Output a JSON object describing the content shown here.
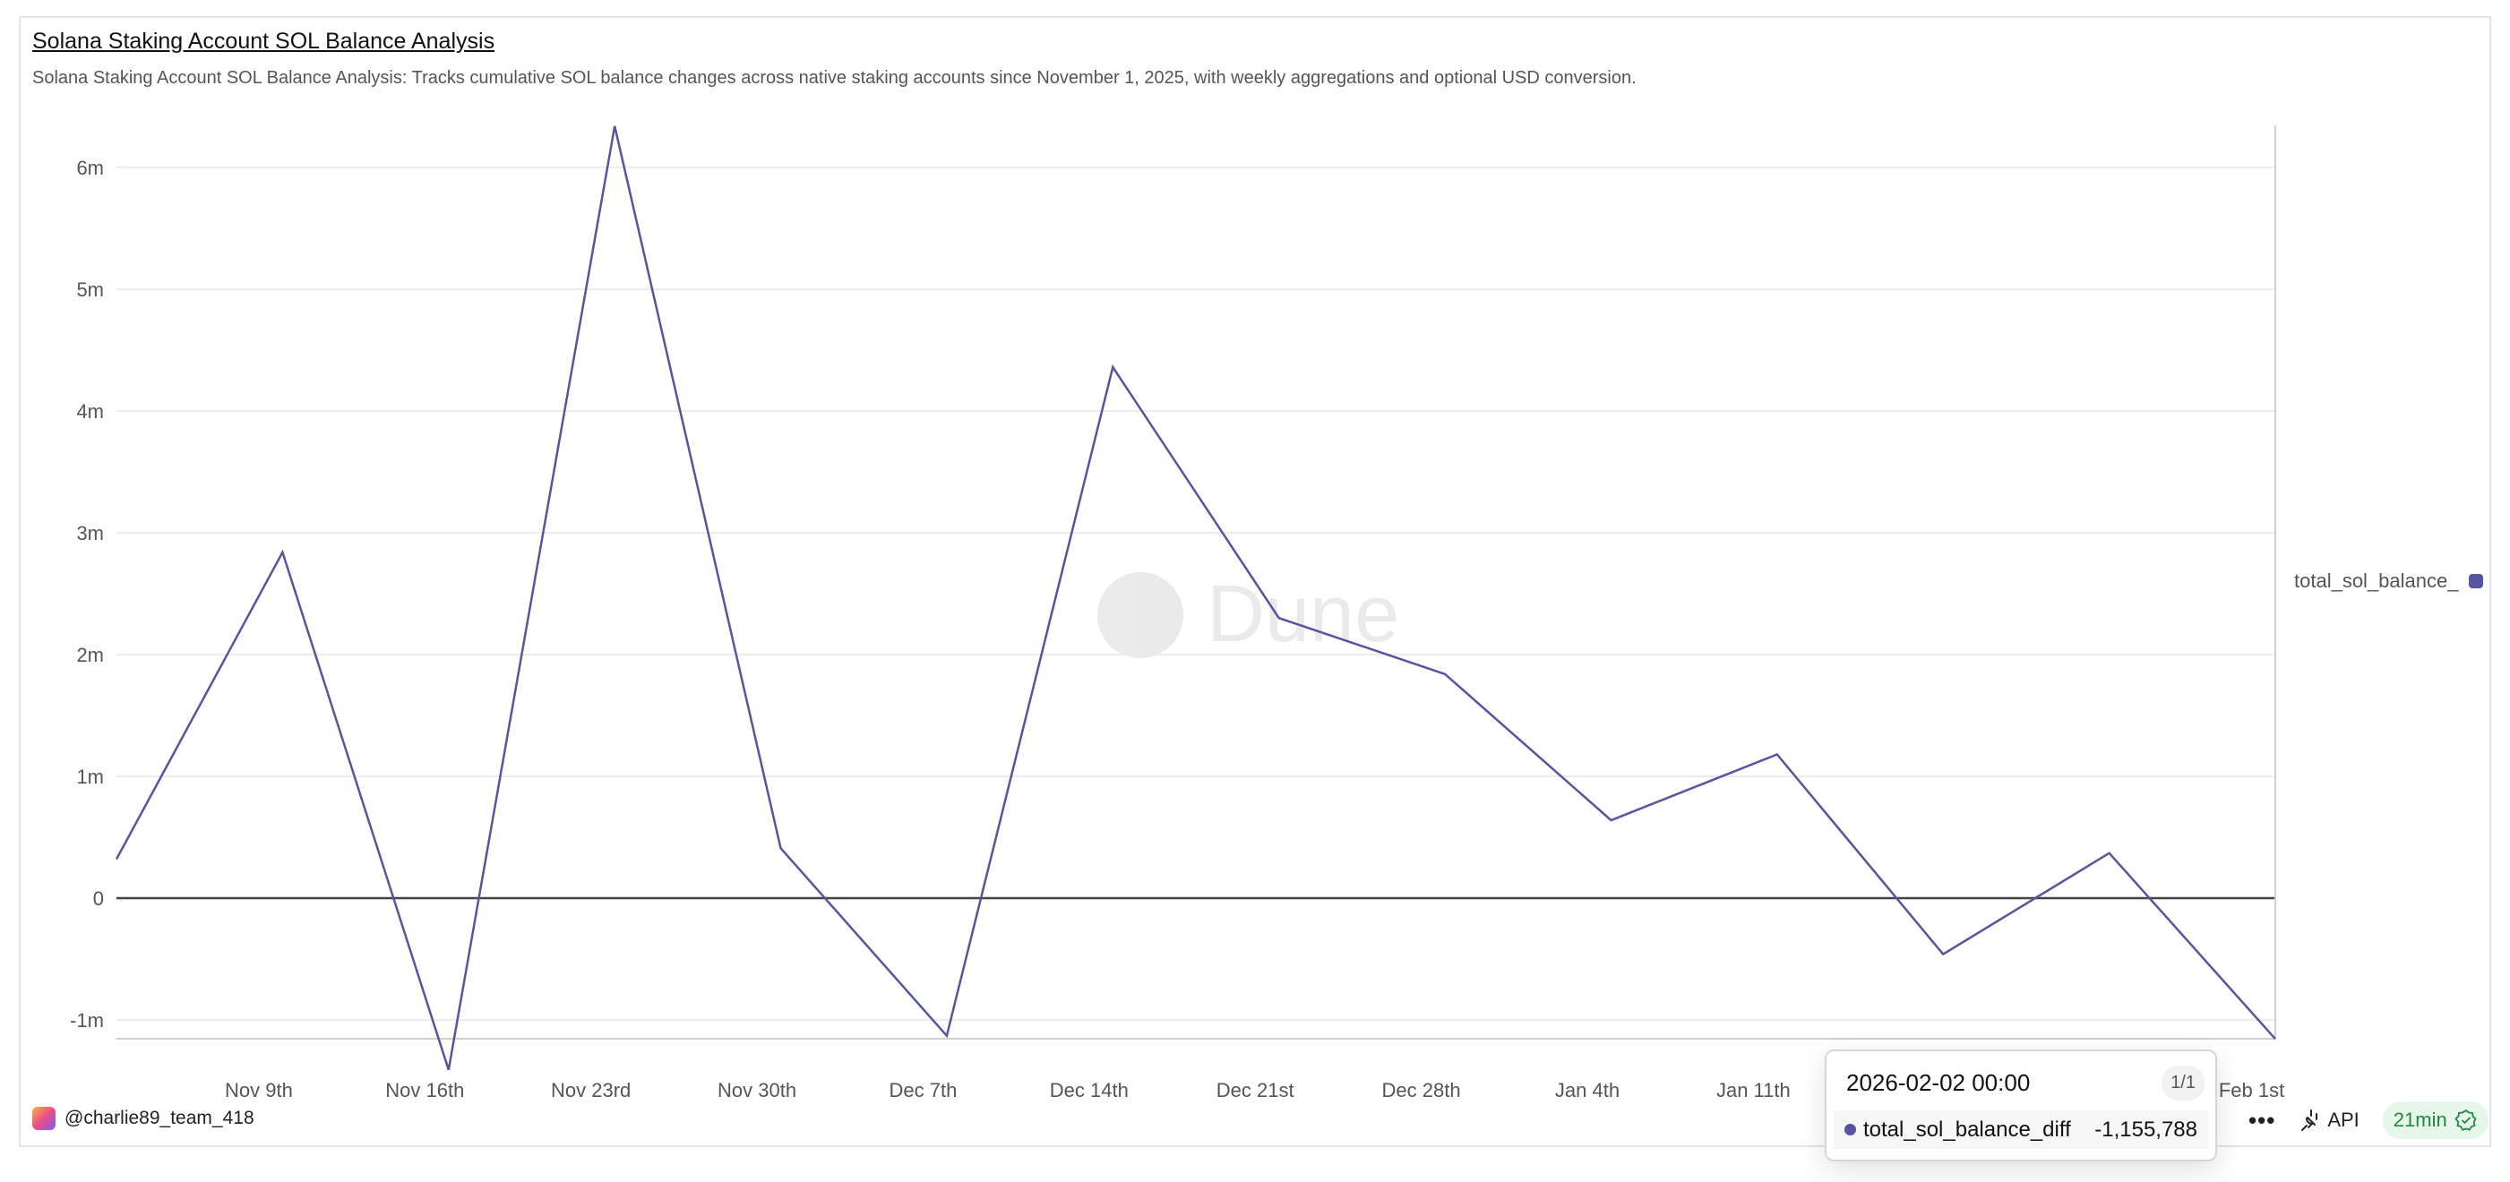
{
  "header": {
    "title": "Solana Staking Account SOL Balance Analysis",
    "description": "Solana Staking Account SOL Balance Analysis: Tracks cumulative SOL balance changes across native staking accounts since November 1, 2025, with weekly aggregations and optional USD conversion."
  },
  "watermark": "Dune",
  "colors": {
    "series": "#5754a0",
    "grid": "#ececec",
    "zero_line": "#444444",
    "badge_bg": "#e6f6ea",
    "badge_text": "#1f8a3f"
  },
  "chart_data": {
    "type": "line",
    "title": "",
    "xlabel": "",
    "ylabel": "",
    "x": [
      "2025-11-03",
      "2025-11-10",
      "2025-11-17",
      "2025-11-24",
      "2025-12-01",
      "2025-12-08",
      "2025-12-15",
      "2025-12-22",
      "2025-12-29",
      "2026-01-05",
      "2026-01-12",
      "2026-01-19",
      "2026-01-26",
      "2026-02-02"
    ],
    "series": [
      {
        "name": "total_sol_balance_diff",
        "values": [
          320000,
          2840000,
          -1410000,
          6340000,
          410000,
          -1130000,
          4360000,
          2300000,
          1840000,
          640000,
          1180000,
          -460000,
          370000,
          -1155788
        ]
      }
    ],
    "ylim": [
      -1160000,
      6400000
    ],
    "y_ticks": [
      {
        "v": -1000000,
        "label": "-1m"
      },
      {
        "v": 0,
        "label": "0"
      },
      {
        "v": 1000000,
        "label": "1m"
      },
      {
        "v": 2000000,
        "label": "2m"
      },
      {
        "v": 3000000,
        "label": "3m"
      },
      {
        "v": 4000000,
        "label": "4m"
      },
      {
        "v": 5000000,
        "label": "5m"
      },
      {
        "v": 6000000,
        "label": "6m"
      }
    ],
    "x_ticks": [
      {
        "d": "2025-11-09",
        "label": "Nov 9th"
      },
      {
        "d": "2025-11-16",
        "label": "Nov 16th"
      },
      {
        "d": "2025-11-23",
        "label": "Nov 23rd"
      },
      {
        "d": "2025-11-30",
        "label": "Nov 30th"
      },
      {
        "d": "2025-12-07",
        "label": "Dec 7th"
      },
      {
        "d": "2025-12-14",
        "label": "Dec 14th"
      },
      {
        "d": "2025-12-21",
        "label": "Dec 21st"
      },
      {
        "d": "2025-12-28",
        "label": "Dec 28th"
      },
      {
        "d": "2026-01-04",
        "label": "Jan 4th"
      },
      {
        "d": "2026-01-11",
        "label": "Jan 11th"
      },
      {
        "d": "2026-02-01",
        "label": "Feb 1st"
      }
    ],
    "grid": true,
    "legend_position": "right"
  },
  "legend": {
    "label": "total_sol_balance_"
  },
  "tooltip": {
    "date": "2026-02-02 00:00",
    "count": "1/1",
    "series": "total_sol_balance_diff",
    "value": "-1,155,788"
  },
  "footer": {
    "user": "@charlie89_team_418",
    "more": "•••",
    "api": "API",
    "freshness": "21min"
  }
}
